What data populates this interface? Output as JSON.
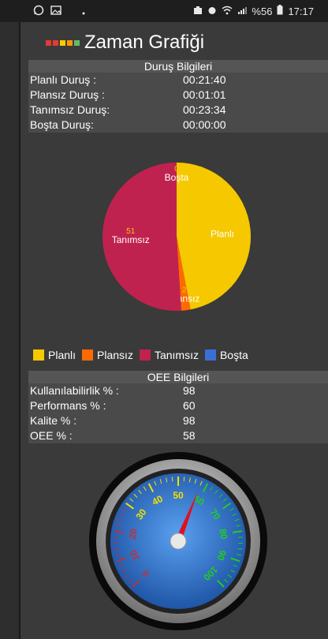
{
  "status_bar": {
    "battery_percent": "%56",
    "time": "17:17"
  },
  "app": {
    "title": "Zaman Grafiği",
    "swatch_colors": [
      "#e53935",
      "#e53935",
      "#ffcc00",
      "#ff9800",
      "#66bb6a"
    ]
  },
  "durus": {
    "title": "Duruş Bilgileri",
    "rows": [
      {
        "label": "Planlı Duruş :",
        "value": "00:21:40"
      },
      {
        "label": "Plansız Duruş :",
        "value": "00:01:01"
      },
      {
        "label": "Tanımsız Duruş:",
        "value": "00:23:34"
      },
      {
        "label": "Boşta Duruş:",
        "value": "00:00:00"
      }
    ]
  },
  "chart_data": {
    "type": "pie",
    "slices": [
      {
        "label": "Planlı",
        "value": 47,
        "color": "#f5c800"
      },
      {
        "label": "Plansız",
        "value": 2,
        "color": "#ff6a00"
      },
      {
        "label": "Tanımsız",
        "value": 51,
        "color": "#c0224f"
      },
      {
        "label": "Boşta",
        "value": 0,
        "color": "#3a6fd8"
      }
    ],
    "legend": [
      "Planlı",
      "Plansız",
      "Tanımsız",
      "Boşta"
    ],
    "legend_placement": "bottom"
  },
  "oee": {
    "title": "OEE Bilgileri",
    "rows": [
      {
        "label": "Kullanılabilirlik % :",
        "value": "98"
      },
      {
        "label": "Performans % :",
        "value": "60"
      },
      {
        "label": "Kalite % :",
        "value": "98"
      },
      {
        "label": "OEE % :",
        "value": "58"
      }
    ]
  },
  "gauge": {
    "value": 58,
    "min": 0,
    "max": 100,
    "ticks": [
      "0",
      "10",
      "20",
      "30",
      "40",
      "50",
      "60",
      "70",
      "80",
      "90",
      "100"
    ],
    "colors": {
      "face": "#2f7fd8",
      "needle": "#e01020",
      "low": "#c0303a",
      "mid": "#f0e000",
      "high": "#22cc22"
    }
  }
}
